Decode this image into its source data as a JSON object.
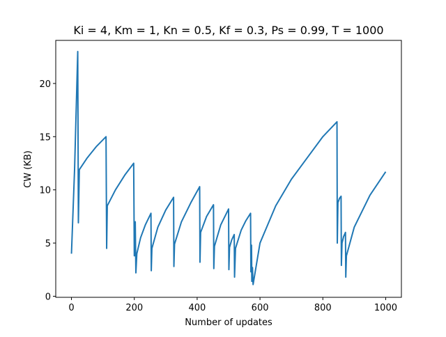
{
  "chart_data": {
    "type": "line",
    "title": "Ki = 4, Km = 1, Kn = 0.5, Kf = 0.3, Ps = 0.99, T = 1000",
    "x_label": "Number of updates",
    "y_label": "CW (KB)",
    "x": [
      0,
      10,
      20,
      22,
      25,
      50,
      80,
      110,
      112,
      114,
      140,
      170,
      198,
      200,
      203,
      205,
      208,
      220,
      235,
      253,
      254,
      256,
      275,
      300,
      325,
      326,
      328,
      350,
      380,
      408,
      409,
      411,
      430,
      452,
      453,
      455,
      475,
      500,
      501,
      503,
      510,
      518,
      519,
      522,
      540,
      555,
      570,
      571,
      573,
      574,
      576,
      578,
      600,
      650,
      700,
      750,
      800,
      845,
      846,
      848,
      853,
      858,
      859,
      861,
      866,
      872,
      873,
      875,
      900,
      950,
      1000
    ],
    "series": [
      {
        "name": "CW",
        "color": "#1f77b4",
        "values": [
          4,
          12,
          23,
          6.9,
          11.9,
          13,
          14.1,
          15,
          4.5,
          8.5,
          10,
          11.4,
          12.5,
          3.8,
          7,
          2.2,
          4,
          5.5,
          6.7,
          7.8,
          2.4,
          4.5,
          6.5,
          8.1,
          9.3,
          2.8,
          4.9,
          7,
          8.8,
          10.3,
          3.2,
          6,
          7.5,
          8.6,
          2.6,
          4.7,
          6.7,
          8.2,
          2.5,
          4.6,
          5.3,
          5.8,
          1.8,
          4.5,
          6.2,
          7.1,
          7.8,
          2.3,
          4.8,
          1.4,
          2.7,
          1.1,
          5,
          8.5,
          11,
          13,
          15,
          16.4,
          5,
          8.8,
          9.2,
          9.4,
          2.9,
          5,
          5.6,
          6,
          1.8,
          3.8,
          6.5,
          9.5,
          11.7
        ]
      }
    ],
    "xlim": [
      -50,
      1050
    ],
    "ylim": [
      -0.1,
      24.05
    ],
    "xticks": [
      0,
      200,
      400,
      600,
      800,
      1000
    ],
    "yticks": [
      0,
      5,
      10,
      15,
      20
    ],
    "grid": false
  }
}
